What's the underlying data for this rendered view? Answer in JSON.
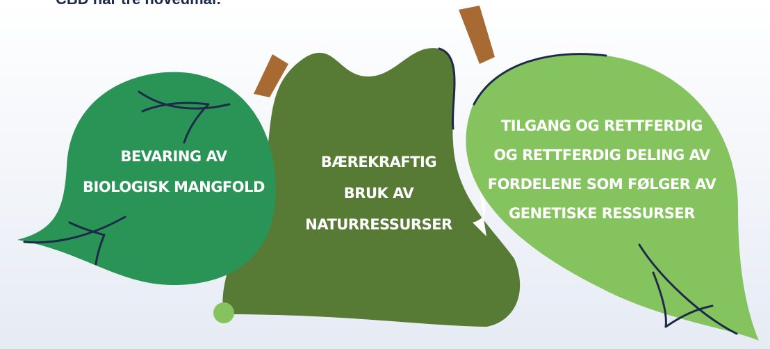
{
  "header": {
    "title": "CBD har tre hovedmål:"
  },
  "goals": [
    {
      "lines": [
        "BEVARING AV",
        "BIOLOGISK MANGFOLD"
      ]
    },
    {
      "lines": [
        "BÆREKRAFTIG",
        "BRUK AV",
        "NATURRESSURSER"
      ]
    },
    {
      "lines": [
        "TILGANG OG RETTFERDIG",
        "OG RETTFERDIG DELING AV",
        "FORDELENE SOM FØLGER AV",
        "GENETISKE RESSURSER"
      ]
    }
  ]
}
